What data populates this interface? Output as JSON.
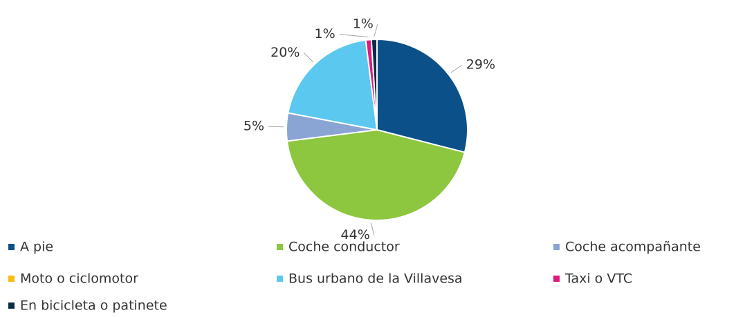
{
  "chart_data": {
    "type": "pie",
    "categories": [
      "A pie",
      "Coche conductor",
      "Coche acompañante",
      "Moto o ciclomotor",
      "Bus urbano de la Villavesa",
      "Taxi o VTC",
      "En bicicleta o patinete"
    ],
    "values": [
      29,
      44,
      5,
      0,
      20,
      1,
      1
    ],
    "value_labels": [
      "29%",
      "44%",
      "5%",
      null,
      "20%",
      "1%",
      "1%"
    ],
    "colors": [
      "#0b5088",
      "#8dc63f",
      "#8aa5d4",
      "#fdb913",
      "#5bc8f0",
      "#e0197d",
      "#0a2d45"
    ],
    "legend": "bottom"
  }
}
